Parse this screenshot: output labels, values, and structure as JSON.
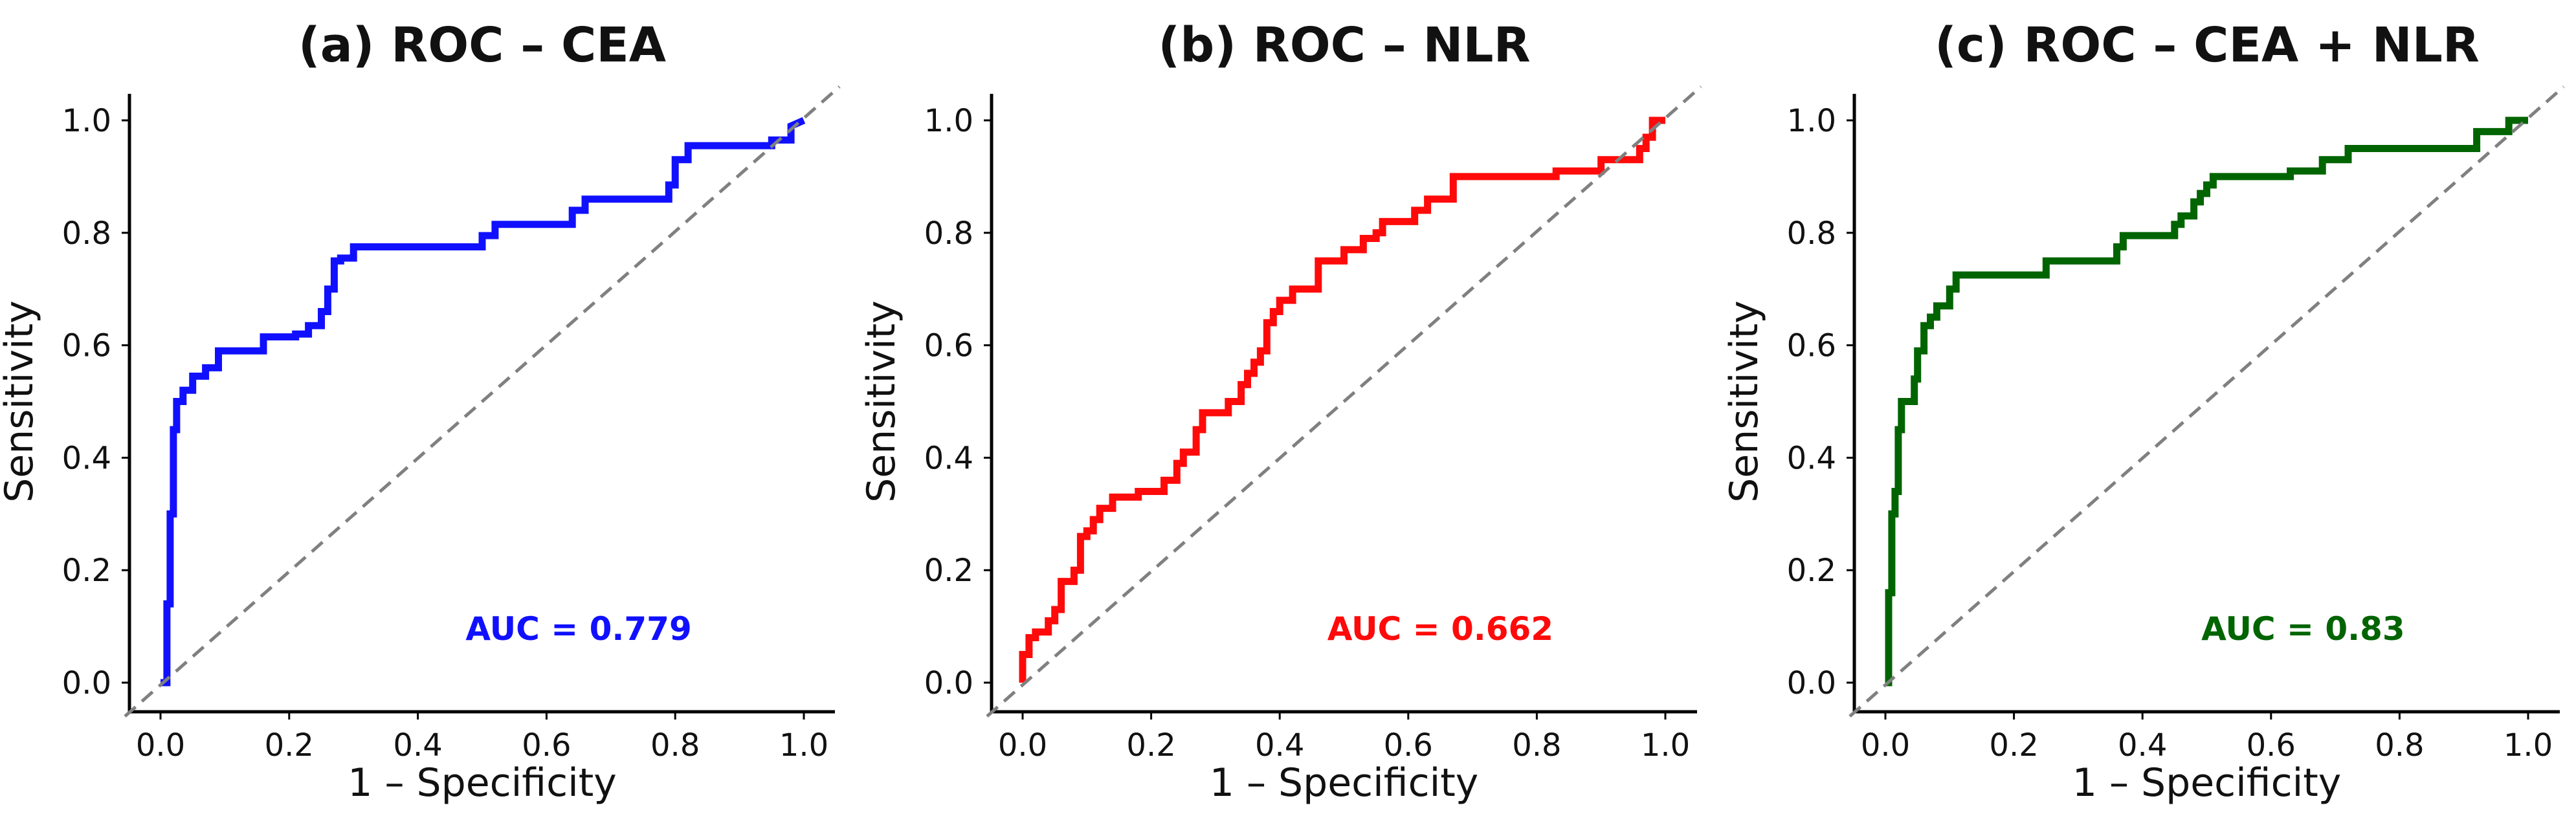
{
  "chart_data": [
    {
      "type": "line",
      "title": "(a) ROC – CEA",
      "xlabel": "1 – Specificity",
      "ylabel": "Sensitivity",
      "xlim": [
        0,
        1
      ],
      "ylim": [
        0,
        1
      ],
      "xticks": [
        "0.0",
        "0.2",
        "0.4",
        "0.6",
        "0.8",
        "1.0"
      ],
      "yticks": [
        "0.0",
        "0.2",
        "0.4",
        "0.6",
        "0.8",
        "1.0"
      ],
      "color": "#1010ff",
      "auc_label": "AUC = 0.779",
      "series": [
        {
          "name": "CEA",
          "x": [
            0,
            0.01,
            0.01,
            0.015,
            0.015,
            0.02,
            0.02,
            0.025,
            0.025,
            0.035,
            0.035,
            0.05,
            0.05,
            0.07,
            0.07,
            0.09,
            0.09,
            0.16,
            0.16,
            0.21,
            0.21,
            0.23,
            0.23,
            0.25,
            0.25,
            0.26,
            0.26,
            0.27,
            0.27,
            0.28,
            0.28,
            0.3,
            0.3,
            0.5,
            0.5,
            0.52,
            0.52,
            0.64,
            0.64,
            0.66,
            0.66,
            0.79,
            0.79,
            0.8,
            0.8,
            0.82,
            0.82,
            0.95,
            0.95,
            0.98,
            0.98,
            1.0
          ],
          "y": [
            0,
            0,
            0.14,
            0.14,
            0.3,
            0.3,
            0.45,
            0.45,
            0.5,
            0.5,
            0.52,
            0.52,
            0.545,
            0.545,
            0.56,
            0.56,
            0.59,
            0.59,
            0.615,
            0.615,
            0.62,
            0.62,
            0.635,
            0.635,
            0.66,
            0.66,
            0.7,
            0.7,
            0.75,
            0.75,
            0.755,
            0.755,
            0.775,
            0.775,
            0.795,
            0.795,
            0.815,
            0.815,
            0.84,
            0.84,
            0.86,
            0.86,
            0.885,
            0.885,
            0.93,
            0.93,
            0.955,
            0.955,
            0.965,
            0.965,
            0.99,
            1.0
          ]
        },
        {
          "name": "reference",
          "x": [
            0,
            1
          ],
          "y": [
            0,
            1
          ]
        }
      ]
    },
    {
      "type": "line",
      "title": "(b) ROC – NLR",
      "xlabel": "1 – Specificity",
      "ylabel": "Sensitivity",
      "xlim": [
        0,
        1
      ],
      "ylim": [
        0,
        1
      ],
      "xticks": [
        "0.0",
        "0.2",
        "0.4",
        "0.6",
        "0.8",
        "1.0"
      ],
      "yticks": [
        "0.0",
        "0.2",
        "0.4",
        "0.6",
        "0.8",
        "1.0"
      ],
      "color": "#ff0a0a",
      "auc_label": "AUC = 0.662",
      "series": [
        {
          "name": "NLR",
          "x": [
            0,
            0,
            0.01,
            0.01,
            0.02,
            0.02,
            0.04,
            0.04,
            0.05,
            0.05,
            0.06,
            0.06,
            0.08,
            0.08,
            0.09,
            0.09,
            0.1,
            0.1,
            0.11,
            0.11,
            0.12,
            0.12,
            0.14,
            0.14,
            0.18,
            0.18,
            0.22,
            0.22,
            0.24,
            0.24,
            0.25,
            0.25,
            0.27,
            0.27,
            0.28,
            0.28,
            0.32,
            0.32,
            0.34,
            0.34,
            0.35,
            0.35,
            0.36,
            0.36,
            0.37,
            0.37,
            0.38,
            0.38,
            0.39,
            0.39,
            0.4,
            0.4,
            0.41,
            0.41,
            0.42,
            0.42,
            0.46,
            0.46,
            0.5,
            0.5,
            0.53,
            0.53,
            0.55,
            0.55,
            0.56,
            0.56,
            0.61,
            0.61,
            0.63,
            0.63,
            0.64,
            0.64,
            0.67,
            0.67,
            0.83,
            0.83,
            0.9,
            0.9,
            0.96,
            0.96,
            0.97,
            0.97,
            0.98,
            0.98,
            1.0
          ],
          "y": [
            0,
            0.05,
            0.05,
            0.08,
            0.08,
            0.09,
            0.09,
            0.11,
            0.11,
            0.13,
            0.13,
            0.18,
            0.18,
            0.2,
            0.2,
            0.26,
            0.26,
            0.27,
            0.27,
            0.29,
            0.29,
            0.31,
            0.31,
            0.33,
            0.33,
            0.34,
            0.34,
            0.36,
            0.36,
            0.39,
            0.39,
            0.41,
            0.41,
            0.45,
            0.45,
            0.48,
            0.48,
            0.5,
            0.5,
            0.53,
            0.53,
            0.55,
            0.55,
            0.57,
            0.57,
            0.59,
            0.59,
            0.64,
            0.64,
            0.66,
            0.66,
            0.68,
            0.68,
            0.68,
            0.68,
            0.7,
            0.7,
            0.75,
            0.75,
            0.77,
            0.77,
            0.79,
            0.79,
            0.8,
            0.8,
            0.82,
            0.82,
            0.84,
            0.84,
            0.86,
            0.86,
            0.86,
            0.86,
            0.9,
            0.9,
            0.91,
            0.91,
            0.93,
            0.93,
            0.95,
            0.95,
            0.97,
            0.97,
            1.0,
            1.0
          ]
        },
        {
          "name": "reference",
          "x": [
            0,
            1
          ],
          "y": [
            0,
            1
          ]
        }
      ]
    },
    {
      "type": "line",
      "title": "(c) ROC – CEA + NLR",
      "xlabel": "1 – Specificity",
      "ylabel": "Sensitivity",
      "xlim": [
        0,
        1
      ],
      "ylim": [
        0,
        1
      ],
      "xticks": [
        "0.0",
        "0.2",
        "0.4",
        "0.6",
        "0.8",
        "1.0"
      ],
      "yticks": [
        "0.0",
        "0.2",
        "0.4",
        "0.6",
        "0.8",
        "1.0"
      ],
      "color": "#006400",
      "auc_label": "AUC = 0.83",
      "series": [
        {
          "name": "CEA + NLR",
          "x": [
            0,
            0.005,
            0.005,
            0.01,
            0.01,
            0.015,
            0.015,
            0.02,
            0.02,
            0.025,
            0.025,
            0.045,
            0.045,
            0.05,
            0.05,
            0.06,
            0.06,
            0.07,
            0.07,
            0.08,
            0.08,
            0.1,
            0.1,
            0.11,
            0.11,
            0.25,
            0.25,
            0.36,
            0.36,
            0.37,
            0.37,
            0.45,
            0.45,
            0.46,
            0.46,
            0.48,
            0.48,
            0.49,
            0.49,
            0.5,
            0.5,
            0.51,
            0.51,
            0.63,
            0.63,
            0.68,
            0.68,
            0.72,
            0.72,
            0.92,
            0.92,
            0.97,
            0.97,
            1.0
          ],
          "y": [
            0,
            0,
            0.16,
            0.16,
            0.3,
            0.3,
            0.34,
            0.34,
            0.45,
            0.45,
            0.5,
            0.5,
            0.54,
            0.54,
            0.59,
            0.59,
            0.635,
            0.635,
            0.65,
            0.65,
            0.67,
            0.67,
            0.7,
            0.7,
            0.725,
            0.725,
            0.75,
            0.75,
            0.775,
            0.775,
            0.795,
            0.795,
            0.815,
            0.815,
            0.83,
            0.83,
            0.855,
            0.855,
            0.87,
            0.87,
            0.885,
            0.885,
            0.9,
            0.9,
            0.91,
            0.91,
            0.93,
            0.93,
            0.95,
            0.95,
            0.98,
            0.98,
            1.0,
            1.0
          ]
        },
        {
          "name": "reference",
          "x": [
            0,
            1
          ],
          "y": [
            0,
            1
          ]
        }
      ]
    }
  ]
}
